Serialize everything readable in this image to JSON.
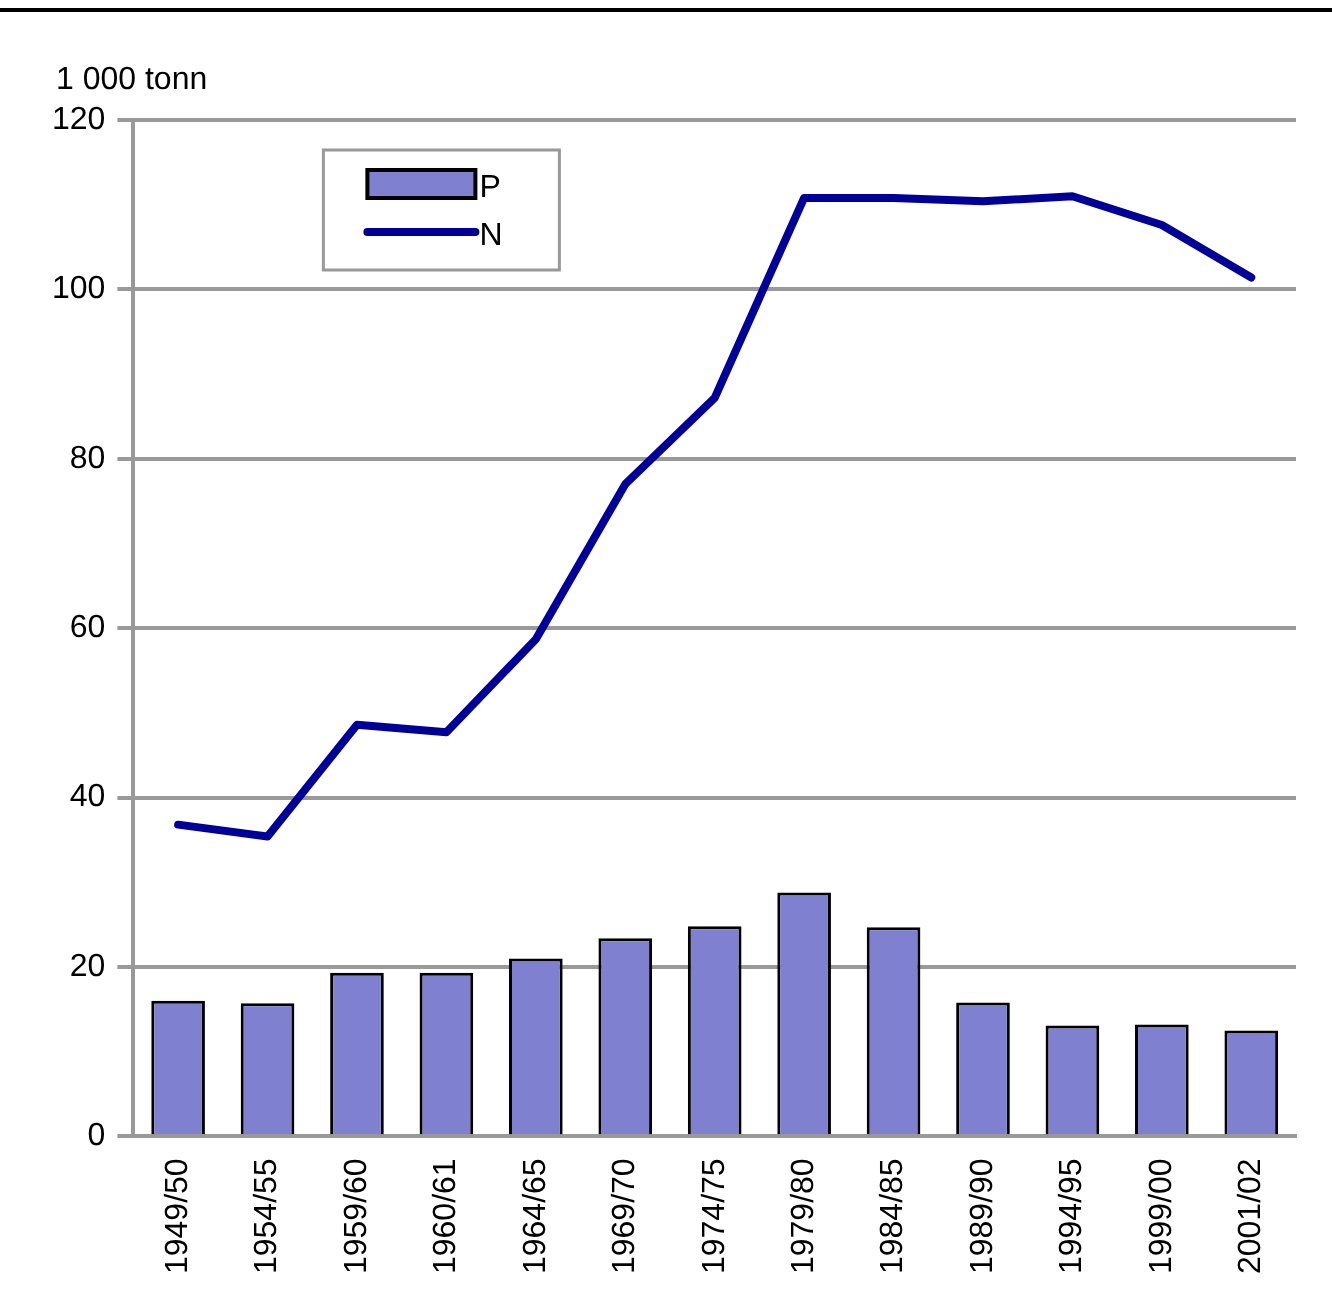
{
  "chart_data": {
    "type": "bar",
    "ylabel": "1 000 tonn",
    "categories": [
      "1949/50",
      "1954/55",
      "1959/60",
      "1960/61",
      "1964/65",
      "1969/70",
      "1974/75",
      "1979/80",
      "1984/85",
      "1989/90",
      "1994/95",
      "1999/00",
      "2001/02"
    ],
    "series": [
      {
        "name": "P",
        "color": "#8080d0",
        "values": [
          16,
          15.7,
          19.3,
          19.3,
          21,
          23.4,
          24.8,
          28.8,
          24.7,
          15.8,
          13.1,
          13.2,
          12.5
        ]
      },
      {
        "name": "N",
        "type": "line",
        "color": "#000099",
        "values": [
          36.8,
          35.4,
          48.6,
          47.7,
          58.7,
          77,
          87.2,
          110.8,
          110.8,
          110.4,
          111,
          107.6,
          101.4
        ]
      }
    ],
    "ylim": [
      0,
      120
    ],
    "yticks": [
      0,
      20,
      40,
      60,
      80,
      100,
      120
    ],
    "grid": "y",
    "legend": "top left",
    "marker": "none"
  }
}
